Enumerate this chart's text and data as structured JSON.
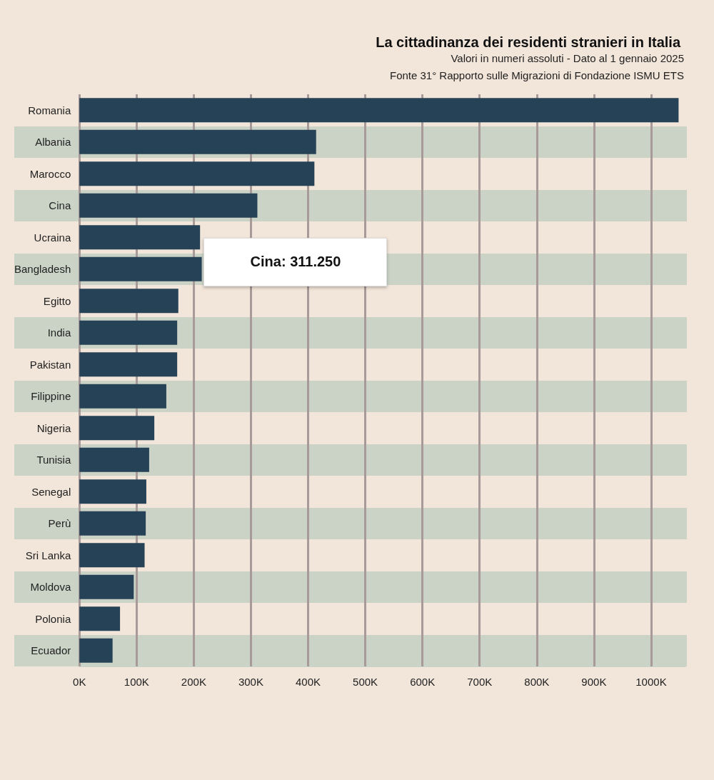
{
  "chart_data": {
    "type": "bar",
    "orientation": "horizontal",
    "title": "La cittadinanza dei residenti stranieri in Italia",
    "subtitle": "Valori in numeri assoluti - Dato al 1 gennaio 2025\nFonte 31° Rapporto sulle Migrazioni di Fondazione ISMU ETS",
    "categories": [
      "Romania",
      "Albania",
      "Marocco",
      "Cina",
      "Ucraina",
      "Bangladesh",
      "Egitto",
      "India",
      "Pakistan",
      "Filippine",
      "Nigeria",
      "Tunisia",
      "Senegal",
      "Perù",
      "Sri Lanka",
      "Moldova",
      "Polonia",
      "Ecuador"
    ],
    "values": [
      1048000,
      414000,
      411000,
      311250,
      211000,
      214000,
      173000,
      171000,
      171000,
      152000,
      131000,
      122000,
      117000,
      116000,
      114000,
      95000,
      71000,
      58000
    ],
    "color": "#264257",
    "xlim": [
      0,
      1060000
    ],
    "xticks": [
      {
        "value": 0,
        "label": "0K"
      },
      {
        "value": 100000,
        "label": "100K"
      },
      {
        "value": 200000,
        "label": "200K"
      },
      {
        "value": 300000,
        "label": "300K"
      },
      {
        "value": 400000,
        "label": "400K"
      },
      {
        "value": 500000,
        "label": "500K"
      },
      {
        "value": 600000,
        "label": "600K"
      },
      {
        "value": 700000,
        "label": "700K"
      },
      {
        "value": 800000,
        "label": "800K"
      },
      {
        "value": 900000,
        "label": "900K"
      },
      {
        "value": 1000000,
        "label": "1000K"
      }
    ],
    "grid": "x",
    "annotations": [
      {
        "text": "Cina: 311.250",
        "x": 311250,
        "y": "Cina"
      }
    ]
  }
}
